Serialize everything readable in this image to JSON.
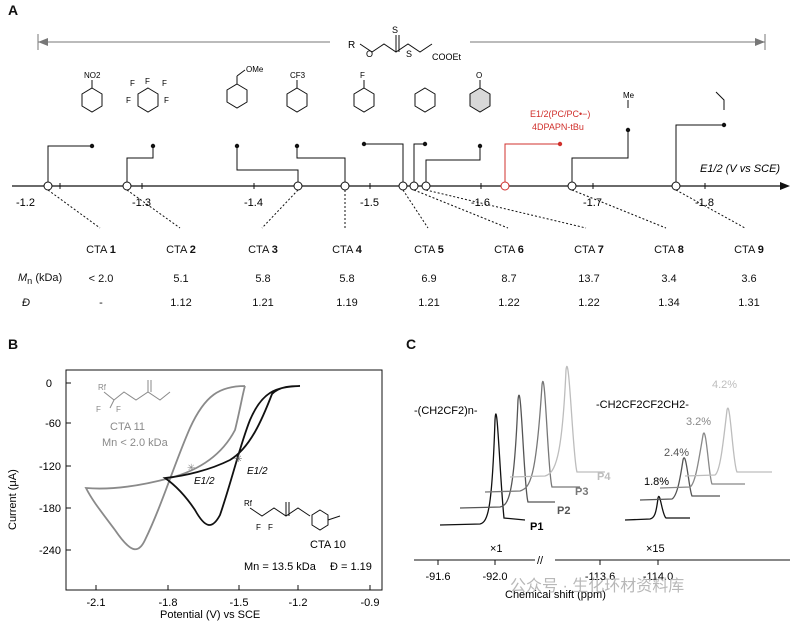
{
  "panel_a": {
    "letter": "A",
    "r_group": "R",
    "cta_core": "COOEt",
    "axis_label": "E1/2 (V vs SCE)",
    "axis_ticks": [
      "-1.2",
      "-1.3",
      "-1.4",
      "-1.5",
      "-1.6",
      "-1.7",
      "-1.8"
    ],
    "substituents": [
      "NO2",
      "F",
      "F",
      "F",
      "F",
      "F",
      "OMe",
      "CF3",
      "F",
      "Me"
    ],
    "photocatalyst_label_1": "E1/2(PC/PC•−)",
    "photocatalyst_label_2": "4DPAPN-tBu",
    "table": {
      "cta_prefix": "CTA",
      "cta_numbers": [
        "1",
        "2",
        "3",
        "4",
        "5",
        "6",
        "7",
        "8",
        "9"
      ],
      "mn_label": "Mn (kDa)",
      "mn_values": [
        "< 2.0",
        "5.1",
        "5.8",
        "5.8",
        "6.9",
        "8.7",
        "13.7",
        "3.4",
        "3.6"
      ],
      "d_label": "Đ",
      "d_values": [
        "-",
        "1.12",
        "1.21",
        "1.19",
        "1.21",
        "1.22",
        "1.22",
        "1.34",
        "1.31"
      ]
    }
  },
  "panel_b": {
    "letter": "B",
    "y_label": "Current (μA)",
    "x_label": "Potential (V) vs SCE",
    "y_ticks": [
      "0",
      "-60",
      "-120",
      "-180",
      "-240"
    ],
    "x_ticks": [
      "-2.1",
      "-1.8",
      "-1.5",
      "-1.2",
      "-0.9"
    ],
    "cta11_label": "CTA 11",
    "cta11_mn": "Mn < 2.0 kDa",
    "cta10_label": "CTA 10",
    "cta10_mn": "Mn = 13.5 kDa",
    "cta10_d": "Đ = 1.19",
    "e_half": "E1/2",
    "rf": "Rf",
    "f": "F"
  },
  "panel_c": {
    "letter": "C",
    "left_group": "-(CH2CF2)n-",
    "right_group": "-CH2CF2CF2CH2-",
    "peak_labels": [
      "P4",
      "P3",
      "P2",
      "P1"
    ],
    "percents": [
      "4.2%",
      "3.2%",
      "2.4%",
      "1.8%"
    ],
    "scale_left": "×1",
    "scale_right": "×15",
    "x_ticks": [
      "-91.6",
      "-92.0",
      "-113.6",
      "-114.0"
    ],
    "x_label": "Chemical shift (ppm)",
    "watermark": "公众号 · 生化环材资料库"
  },
  "colors": {
    "accent_red": "#d0302c",
    "accent_blue": "#2a6fd6",
    "gray": "#8a8a8a",
    "light_gray": "#bdbdbd"
  }
}
